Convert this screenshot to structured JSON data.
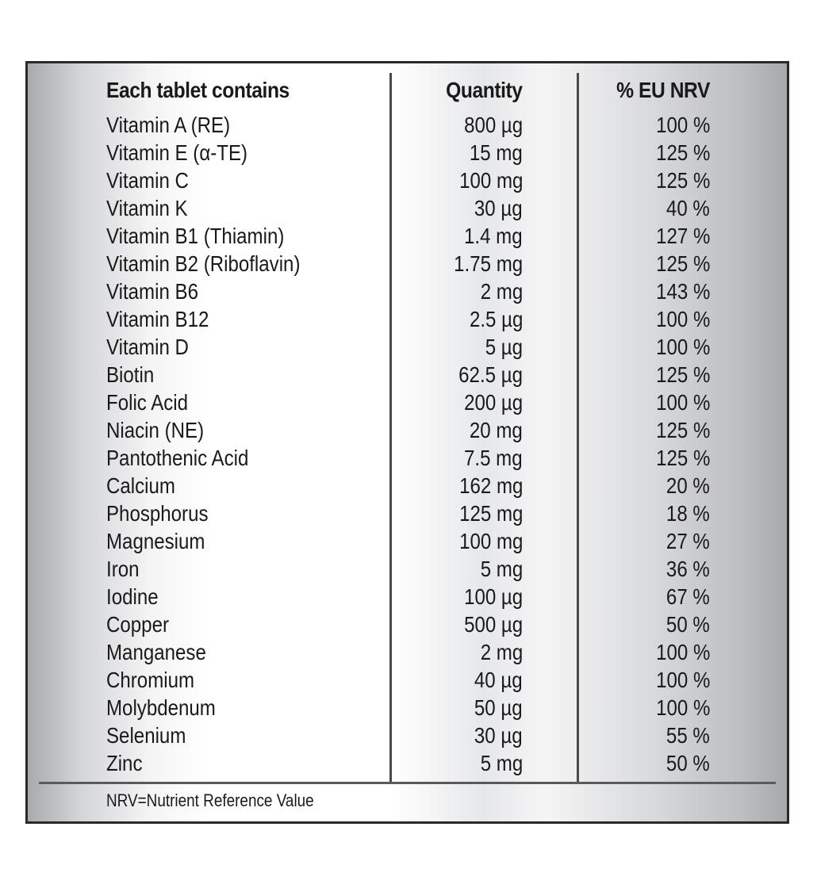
{
  "table": {
    "headers": {
      "name": "Each tablet contains",
      "quantity": "Quantity",
      "nrv": "% EU NRV"
    },
    "rows": [
      {
        "name": "Vitamin A (RE)",
        "quantity": "800 µg",
        "nrv": "100 %"
      },
      {
        "name": "Vitamin E (α-TE)",
        "quantity": "15 mg",
        "nrv": "125 %"
      },
      {
        "name": "Vitamin C",
        "quantity": "100 mg",
        "nrv": "125 %"
      },
      {
        "name": "Vitamin K",
        "quantity": "30 µg",
        "nrv": "40 %"
      },
      {
        "name": "Vitamin B1 (Thiamin)",
        "quantity": "1.4 mg",
        "nrv": "127 %"
      },
      {
        "name": "Vitamin B2 (Riboflavin)",
        "quantity": "1.75 mg",
        "nrv": "125 %"
      },
      {
        "name": "Vitamin B6",
        "quantity": "2 mg",
        "nrv": "143 %"
      },
      {
        "name": "Vitamin B12",
        "quantity": "2.5 µg",
        "nrv": "100 %"
      },
      {
        "name": "Vitamin D",
        "quantity": "5 µg",
        "nrv": "100 %"
      },
      {
        "name": "Biotin",
        "quantity": "62.5 µg",
        "nrv": "125 %"
      },
      {
        "name": "Folic Acid",
        "quantity": "200 µg",
        "nrv": "100 %"
      },
      {
        "name": "Niacin (NE)",
        "quantity": "20 mg",
        "nrv": "125 %"
      },
      {
        "name": "Pantothenic Acid",
        "quantity": "7.5 mg",
        "nrv": "125 %"
      },
      {
        "name": "Calcium",
        "quantity": "162 mg",
        "nrv": "20 %"
      },
      {
        "name": "Phosphorus",
        "quantity": "125 mg",
        "nrv": "18 %"
      },
      {
        "name": "Magnesium",
        "quantity": "100 mg",
        "nrv": "27 %"
      },
      {
        "name": "Iron",
        "quantity": "5 mg",
        "nrv": "36 %"
      },
      {
        "name": "Iodine",
        "quantity": "100 µg",
        "nrv": "67 %"
      },
      {
        "name": "Copper",
        "quantity": "500 µg",
        "nrv": "50 %"
      },
      {
        "name": "Manganese",
        "quantity": "2 mg",
        "nrv": "100 %"
      },
      {
        "name": "Chromium",
        "quantity": "40 µg",
        "nrv": "100 %"
      },
      {
        "name": "Molybdenum",
        "quantity": "50 µg",
        "nrv": "100 %"
      },
      {
        "name": "Selenium",
        "quantity": "30 µg",
        "nrv": "55 %"
      },
      {
        "name": "Zinc",
        "quantity": "5 mg",
        "nrv": "50 %"
      }
    ],
    "footnote": "NRV=Nutrient Reference Value"
  }
}
